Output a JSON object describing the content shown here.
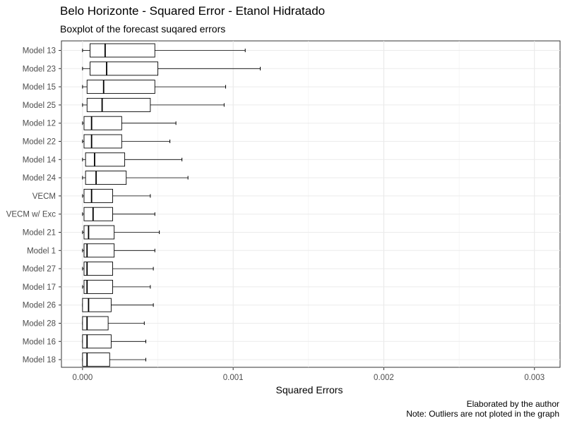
{
  "chart_data": {
    "type": "boxplot",
    "orientation": "horizontal",
    "title": "Belo Horizonte - Squared Error - Etanol Hidratado",
    "subtitle": "Boxplot of the forecast suqared errors",
    "xlabel": "Squared Errors",
    "ylabel": "",
    "xlim": [
      -0.00014,
      0.00317
    ],
    "xticks": [
      0.0,
      0.001,
      0.002,
      0.003
    ],
    "xtick_labels": [
      "0.000",
      "0.001",
      "0.002",
      "0.003"
    ],
    "grid": true,
    "caption": [
      "Elaborated by the author",
      "Note: Outliers are not ploted in the graph"
    ],
    "series": [
      {
        "category": "Model 13",
        "whisker_low": 0.0,
        "q1": 5e-05,
        "median": 0.00015,
        "q3": 0.00048,
        "whisker_high": 0.00108
      },
      {
        "category": "Model 23",
        "whisker_low": 0.0,
        "q1": 5e-05,
        "median": 0.00016,
        "q3": 0.0005,
        "whisker_high": 0.00118
      },
      {
        "category": "Model 15",
        "whisker_low": 0.0,
        "q1": 3e-05,
        "median": 0.00014,
        "q3": 0.00048,
        "whisker_high": 0.00095
      },
      {
        "category": "Model 25",
        "whisker_low": 0.0,
        "q1": 3e-05,
        "median": 0.00013,
        "q3": 0.00045,
        "whisker_high": 0.00094
      },
      {
        "category": "Model 12",
        "whisker_low": 0.0,
        "q1": 1e-05,
        "median": 6e-05,
        "q3": 0.00026,
        "whisker_high": 0.00062
      },
      {
        "category": "Model 22",
        "whisker_low": 0.0,
        "q1": 1e-05,
        "median": 6e-05,
        "q3": 0.00026,
        "whisker_high": 0.00058
      },
      {
        "category": "Model 14",
        "whisker_low": 0.0,
        "q1": 2e-05,
        "median": 8e-05,
        "q3": 0.00028,
        "whisker_high": 0.00066
      },
      {
        "category": "Model 24",
        "whisker_low": 0.0,
        "q1": 2e-05,
        "median": 9e-05,
        "q3": 0.00029,
        "whisker_high": 0.0007
      },
      {
        "category": "VECM",
        "whisker_low": 0.0,
        "q1": 1e-05,
        "median": 6e-05,
        "q3": 0.0002,
        "whisker_high": 0.00045
      },
      {
        "category": "VECM w/ Exc",
        "whisker_low": 0.0,
        "q1": 1e-05,
        "median": 7e-05,
        "q3": 0.0002,
        "whisker_high": 0.00048
      },
      {
        "category": "Model 21",
        "whisker_low": 0.0,
        "q1": 1e-05,
        "median": 4e-05,
        "q3": 0.00021,
        "whisker_high": 0.00051
      },
      {
        "category": "Model 1",
        "whisker_low": 0.0,
        "q1": 1e-05,
        "median": 3e-05,
        "q3": 0.00021,
        "whisker_high": 0.00048
      },
      {
        "category": "Model 27",
        "whisker_low": 0.0,
        "q1": 1e-05,
        "median": 3e-05,
        "q3": 0.0002,
        "whisker_high": 0.00047
      },
      {
        "category": "Model 17",
        "whisker_low": 0.0,
        "q1": 1e-05,
        "median": 3e-05,
        "q3": 0.0002,
        "whisker_high": 0.00045
      },
      {
        "category": "Model 26",
        "whisker_low": 0.0,
        "q1": 0.0,
        "median": 4e-05,
        "q3": 0.00019,
        "whisker_high": 0.00047
      },
      {
        "category": "Model 28",
        "whisker_low": 0.0,
        "q1": 0.0,
        "median": 3e-05,
        "q3": 0.00017,
        "whisker_high": 0.00041
      },
      {
        "category": "Model 16",
        "whisker_low": 0.0,
        "q1": 0.0,
        "median": 3e-05,
        "q3": 0.00019,
        "whisker_high": 0.00042
      },
      {
        "category": "Model 18",
        "whisker_low": 0.0,
        "q1": 0.0,
        "median": 3e-05,
        "q3": 0.00018,
        "whisker_high": 0.00042
      }
    ]
  }
}
